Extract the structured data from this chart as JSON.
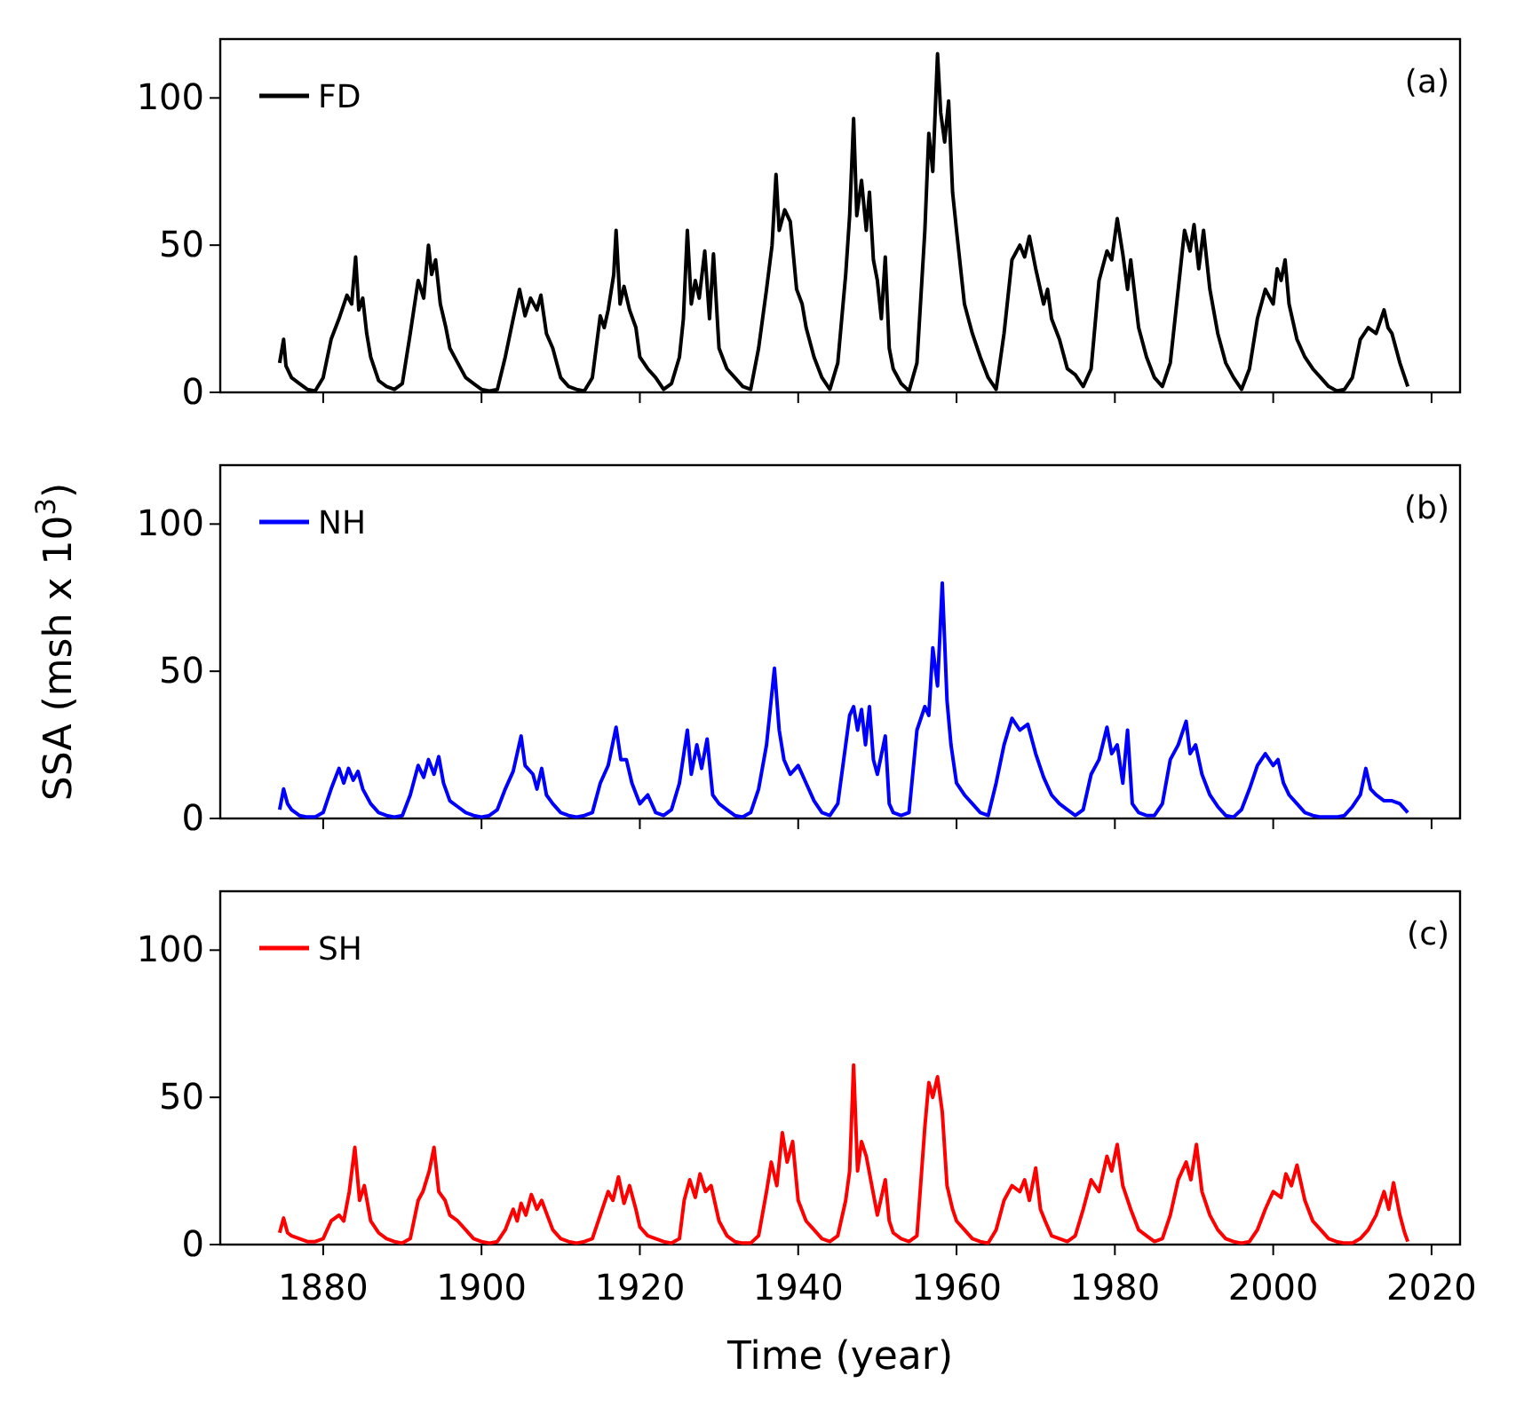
{
  "chart_data": [
    {
      "type": "line",
      "xlim": [
        1867,
        2023.6
      ],
      "ylim": [
        0,
        120
      ],
      "yticks": [
        0,
        50,
        100
      ],
      "xticks": [
        1880,
        1900,
        1920,
        1940,
        1960,
        1980,
        2000,
        2020
      ],
      "tick_labels": "y",
      "legend": "top left",
      "annotations": [
        "(a)"
      ],
      "series": [
        {
          "name": "FD",
          "color": "#000000",
          "x": [
            1874.5,
            1875,
            1875.3,
            1876,
            1877,
            1878,
            1879,
            1880,
            1881,
            1882,
            1883,
            1883.6,
            1884.1,
            1884.5,
            1885,
            1885.5,
            1886,
            1887,
            1888,
            1889,
            1890,
            1891,
            1892,
            1892.7,
            1893.3,
            1893.7,
            1894.2,
            1894.8,
            1895.5,
            1896,
            1897,
            1898,
            1899,
            1900,
            1901,
            1902,
            1903,
            1904,
            1904.8,
            1905.5,
            1906.2,
            1907,
            1907.5,
            1908.2,
            1909,
            1910,
            1911,
            1912,
            1913,
            1914,
            1915,
            1915.5,
            1916,
            1916.7,
            1917,
            1917.5,
            1918,
            1918.7,
            1919.5,
            1920,
            1921,
            1922,
            1923,
            1924,
            1925,
            1925.5,
            1926,
            1926.5,
            1927,
            1927.5,
            1928.2,
            1928.8,
            1929.3,
            1930,
            1931,
            1932,
            1933,
            1934,
            1935,
            1936,
            1936.7,
            1937.2,
            1937.6,
            1938.3,
            1939,
            1939.8,
            1940.5,
            1941,
            1942,
            1943,
            1944,
            1945,
            1946,
            1946.5,
            1947,
            1947.4,
            1948,
            1948.6,
            1949,
            1949.5,
            1950,
            1950.5,
            1951,
            1951.5,
            1952,
            1953,
            1954,
            1955,
            1956,
            1956.5,
            1957,
            1957.6,
            1958,
            1958.5,
            1959,
            1959.5,
            1960,
            1961,
            1962,
            1963,
            1964,
            1965,
            1966,
            1967,
            1968,
            1968.6,
            1969.2,
            1970,
            1971,
            1971.5,
            1972,
            1973,
            1974,
            1975,
            1976,
            1977,
            1978,
            1979,
            1979.6,
            1980.3,
            1981,
            1981.6,
            1982,
            1983,
            1984,
            1985,
            1986,
            1987,
            1988,
            1988.8,
            1989.5,
            1990,
            1990.6,
            1991.2,
            1992,
            1993,
            1994,
            1995,
            1996,
            1997,
            1998,
            1999,
            2000,
            2000.5,
            2001,
            2001.5,
            2002,
            2003,
            2004,
            2005,
            2006,
            2007,
            2008,
            2009,
            2010,
            2011,
            2012,
            2013,
            2014,
            2014.5,
            2015,
            2016,
            2017
          ],
          "values": [
            10,
            18,
            9,
            5,
            3,
            1,
            0.5,
            5,
            18,
            25,
            33,
            30,
            46,
            28,
            32,
            20,
            12,
            4,
            2,
            1,
            3,
            20,
            38,
            32,
            50,
            40,
            45,
            30,
            22,
            15,
            10,
            5,
            3,
            1,
            0.5,
            1,
            12,
            25,
            35,
            26,
            32,
            28,
            33,
            20,
            15,
            5,
            2,
            1,
            0.5,
            5,
            26,
            22,
            28,
            40,
            55,
            30,
            36,
            28,
            22,
            12,
            8,
            5,
            1,
            3,
            12,
            25,
            55,
            30,
            38,
            32,
            48,
            25,
            47,
            15,
            8,
            5,
            2,
            1,
            15,
            35,
            50,
            74,
            55,
            62,
            58,
            35,
            30,
            22,
            12,
            5,
            1,
            10,
            40,
            60,
            93,
            60,
            72,
            55,
            68,
            45,
            38,
            25,
            46,
            15,
            8,
            3,
            0.5,
            10,
            55,
            88,
            75,
            115,
            95,
            85,
            99,
            68,
            55,
            30,
            20,
            12,
            5,
            1,
            20,
            45,
            50,
            46,
            53,
            42,
            30,
            35,
            25,
            18,
            8,
            6,
            2,
            8,
            38,
            48,
            45,
            59,
            47,
            35,
            45,
            22,
            12,
            5,
            2,
            10,
            35,
            55,
            48,
            57,
            42,
            55,
            35,
            20,
            10,
            5,
            1,
            8,
            25,
            35,
            30,
            42,
            38,
            45,
            30,
            18,
            12,
            8,
            5,
            2,
            0.5,
            1,
            5,
            18,
            22,
            20,
            28,
            22,
            20,
            10,
            2
          ]
        }
      ]
    },
    {
      "type": "line",
      "xlim": [
        1867,
        2023.6
      ],
      "ylim": [
        0,
        120
      ],
      "yticks": [
        0,
        50,
        100
      ],
      "xticks": [
        1880,
        1900,
        1920,
        1940,
        1960,
        1980,
        2000,
        2020
      ],
      "tick_labels": "y",
      "legend": "top left",
      "annotations": [
        "(b)"
      ],
      "ylabel": "SSA (msh x 10$^{3}$)",
      "series": [
        {
          "name": "NH",
          "color": "#0000ff",
          "x": [
            1874.5,
            1875,
            1875.5,
            1876,
            1877,
            1878,
            1879,
            1880,
            1881,
            1882,
            1882.6,
            1883.2,
            1883.8,
            1884.4,
            1885,
            1886,
            1887,
            1888,
            1889,
            1890,
            1891,
            1892,
            1892.7,
            1893.3,
            1894,
            1894.6,
            1895.2,
            1896,
            1897,
            1898,
            1899,
            1900,
            1901,
            1902,
            1903,
            1904,
            1905,
            1905.5,
            1906.5,
            1907,
            1907.6,
            1908.2,
            1909,
            1910,
            1911,
            1912,
            1913,
            1914,
            1915,
            1916,
            1917,
            1917.6,
            1918.3,
            1919,
            1920,
            1921,
            1922,
            1923,
            1924,
            1925,
            1926,
            1926.5,
            1927.2,
            1927.8,
            1928.5,
            1929.2,
            1930,
            1931,
            1932,
            1933,
            1934,
            1935,
            1936,
            1937,
            1937.6,
            1938.2,
            1939,
            1940,
            1941,
            1942,
            1943,
            1944,
            1945,
            1946,
            1946.5,
            1947,
            1947.5,
            1948,
            1948.5,
            1949,
            1949.5,
            1950,
            1951,
            1951.5,
            1952,
            1953,
            1954,
            1955,
            1956,
            1956.5,
            1957,
            1957.6,
            1958.2,
            1958.8,
            1959.3,
            1960,
            1961,
            1962,
            1963,
            1964,
            1965,
            1966,
            1967,
            1968,
            1969,
            1970,
            1971,
            1972,
            1973,
            1974,
            1975,
            1976,
            1977,
            1978,
            1979,
            1979.6,
            1980.3,
            1981,
            1981.6,
            1982.2,
            1983,
            1984,
            1985,
            1986,
            1987,
            1988,
            1989,
            1989.5,
            1990.2,
            1991,
            1992,
            1993,
            1994,
            1995,
            1996,
            1997,
            1998,
            1999,
            2000,
            2000.6,
            2001.3,
            2002,
            2003,
            2004,
            2005,
            2006,
            2007,
            2008,
            2009,
            2010,
            2011,
            2011.7,
            2012.3,
            2013,
            2014,
            2015,
            2016,
            2017
          ],
          "values": [
            3,
            10,
            5,
            3,
            1,
            0.5,
            0.5,
            2,
            10,
            17,
            12,
            17,
            13,
            16,
            10,
            5,
            2,
            1,
            0.5,
            1,
            8,
            18,
            14,
            20,
            15,
            21,
            12,
            6,
            4,
            2,
            1,
            0.5,
            1,
            3,
            10,
            16,
            28,
            18,
            15,
            10,
            17,
            8,
            5,
            2,
            1,
            0.5,
            1,
            2,
            12,
            18,
            31,
            20,
            20,
            12,
            5,
            8,
            2,
            1,
            3,
            12,
            30,
            15,
            25,
            17,
            27,
            8,
            5,
            3,
            1,
            0.5,
            2,
            10,
            25,
            51,
            30,
            20,
            15,
            18,
            12,
            6,
            2,
            1,
            5,
            25,
            35,
            38,
            30,
            37,
            25,
            38,
            20,
            15,
            28,
            5,
            2,
            1,
            2,
            30,
            38,
            35,
            58,
            45,
            80,
            40,
            25,
            12,
            8,
            5,
            2,
            1,
            12,
            25,
            34,
            30,
            32,
            22,
            14,
            8,
            5,
            3,
            1,
            3,
            15,
            20,
            31,
            22,
            25,
            12,
            30,
            5,
            2,
            1,
            1,
            5,
            20,
            25,
            33,
            22,
            25,
            15,
            8,
            4,
            1,
            0.5,
            3,
            10,
            18,
            22,
            18,
            20,
            12,
            8,
            5,
            2,
            1,
            0.5,
            0.5,
            0.5,
            1,
            4,
            8,
            17,
            10,
            8,
            6,
            6,
            5,
            2
          ]
        }
      ]
    },
    {
      "type": "line",
      "xlim": [
        1867,
        2023.6
      ],
      "ylim": [
        0,
        120
      ],
      "yticks": [
        0,
        50,
        100
      ],
      "xticks": [
        1880,
        1900,
        1920,
        1940,
        1960,
        1980,
        2000,
        2020
      ],
      "legend": "top left",
      "annotations": [
        "(c)"
      ],
      "xlabel": "Time (year)",
      "series": [
        {
          "name": "SH",
          "color": "#ff0000",
          "x": [
            1874.5,
            1875,
            1875.5,
            1876,
            1877,
            1878,
            1879,
            1880,
            1881,
            1882,
            1882.6,
            1883.3,
            1884,
            1884.6,
            1885.2,
            1886,
            1887,
            1888,
            1889,
            1890,
            1891,
            1892,
            1892.6,
            1893.4,
            1894,
            1894.6,
            1895.4,
            1896,
            1897,
            1898,
            1899,
            1900,
            1901,
            1902,
            1903,
            1904,
            1904.5,
            1905,
            1905.6,
            1906.3,
            1907,
            1907.6,
            1908.3,
            1909,
            1910,
            1911,
            1912,
            1913,
            1914,
            1915,
            1916,
            1916.6,
            1917.3,
            1918,
            1918.7,
            1919.5,
            1920,
            1921,
            1922,
            1923,
            1924,
            1925,
            1925.6,
            1926.3,
            1927,
            1927.6,
            1928.3,
            1929,
            1930,
            1931,
            1932,
            1933,
            1934,
            1935,
            1936,
            1936.6,
            1937.3,
            1938,
            1938.6,
            1939.3,
            1940,
            1941,
            1942,
            1943,
            1944,
            1945,
            1946,
            1946.5,
            1947,
            1947.5,
            1948,
            1948.6,
            1949.3,
            1950,
            1951,
            1951.5,
            1952,
            1953,
            1954,
            1955,
            1956,
            1956.5,
            1957,
            1957.6,
            1958.2,
            1958.8,
            1959.5,
            1960,
            1961,
            1962,
            1963,
            1964,
            1965,
            1966,
            1967,
            1968,
            1968.6,
            1969.2,
            1970,
            1970.6,
            1971.2,
            1972,
            1973,
            1974,
            1975,
            1976,
            1977,
            1978,
            1979,
            1979.6,
            1980.3,
            1981,
            1982,
            1983,
            1984,
            1985,
            1986,
            1987,
            1988,
            1989,
            1989.6,
            1990.3,
            1991,
            1992,
            1993,
            1994,
            1995,
            1996,
            1997,
            1998,
            1999,
            2000,
            2001,
            2001.6,
            2002.3,
            2003,
            2004,
            2005,
            2006,
            2007,
            2008,
            2009,
            2010,
            2011,
            2012,
            2013,
            2014,
            2014.6,
            2015.2,
            2016,
            2016.6,
            2017
          ],
          "values": [
            4,
            9,
            4,
            3,
            2,
            1,
            1,
            2,
            8,
            10,
            8,
            18,
            33,
            15,
            20,
            8,
            4,
            2,
            1,
            0.5,
            2,
            15,
            18,
            25,
            33,
            18,
            15,
            10,
            8,
            5,
            2,
            1,
            0.5,
            1,
            5,
            12,
            8,
            14,
            10,
            17,
            12,
            15,
            10,
            5,
            2,
            1,
            0.5,
            1,
            2,
            10,
            18,
            15,
            23,
            14,
            20,
            12,
            6,
            3,
            2,
            1,
            0.5,
            2,
            15,
            22,
            16,
            24,
            18,
            20,
            8,
            3,
            1,
            0.5,
            0.5,
            3,
            18,
            28,
            20,
            38,
            28,
            35,
            15,
            8,
            5,
            2,
            1,
            3,
            15,
            25,
            61,
            25,
            35,
            30,
            20,
            10,
            22,
            8,
            4,
            2,
            1,
            3,
            40,
            55,
            50,
            57,
            45,
            20,
            12,
            8,
            5,
            2,
            1,
            0.5,
            5,
            15,
            20,
            18,
            22,
            15,
            26,
            12,
            8,
            3,
            2,
            1,
            3,
            12,
            22,
            18,
            30,
            25,
            34,
            20,
            12,
            5,
            3,
            1,
            2,
            10,
            22,
            28,
            22,
            34,
            18,
            10,
            5,
            2,
            1,
            0.5,
            1,
            5,
            12,
            18,
            16,
            24,
            20,
            27,
            15,
            8,
            5,
            2,
            1,
            0.5,
            0.5,
            2,
            5,
            10,
            18,
            12,
            21,
            10,
            4,
            1
          ]
        }
      ]
    }
  ]
}
